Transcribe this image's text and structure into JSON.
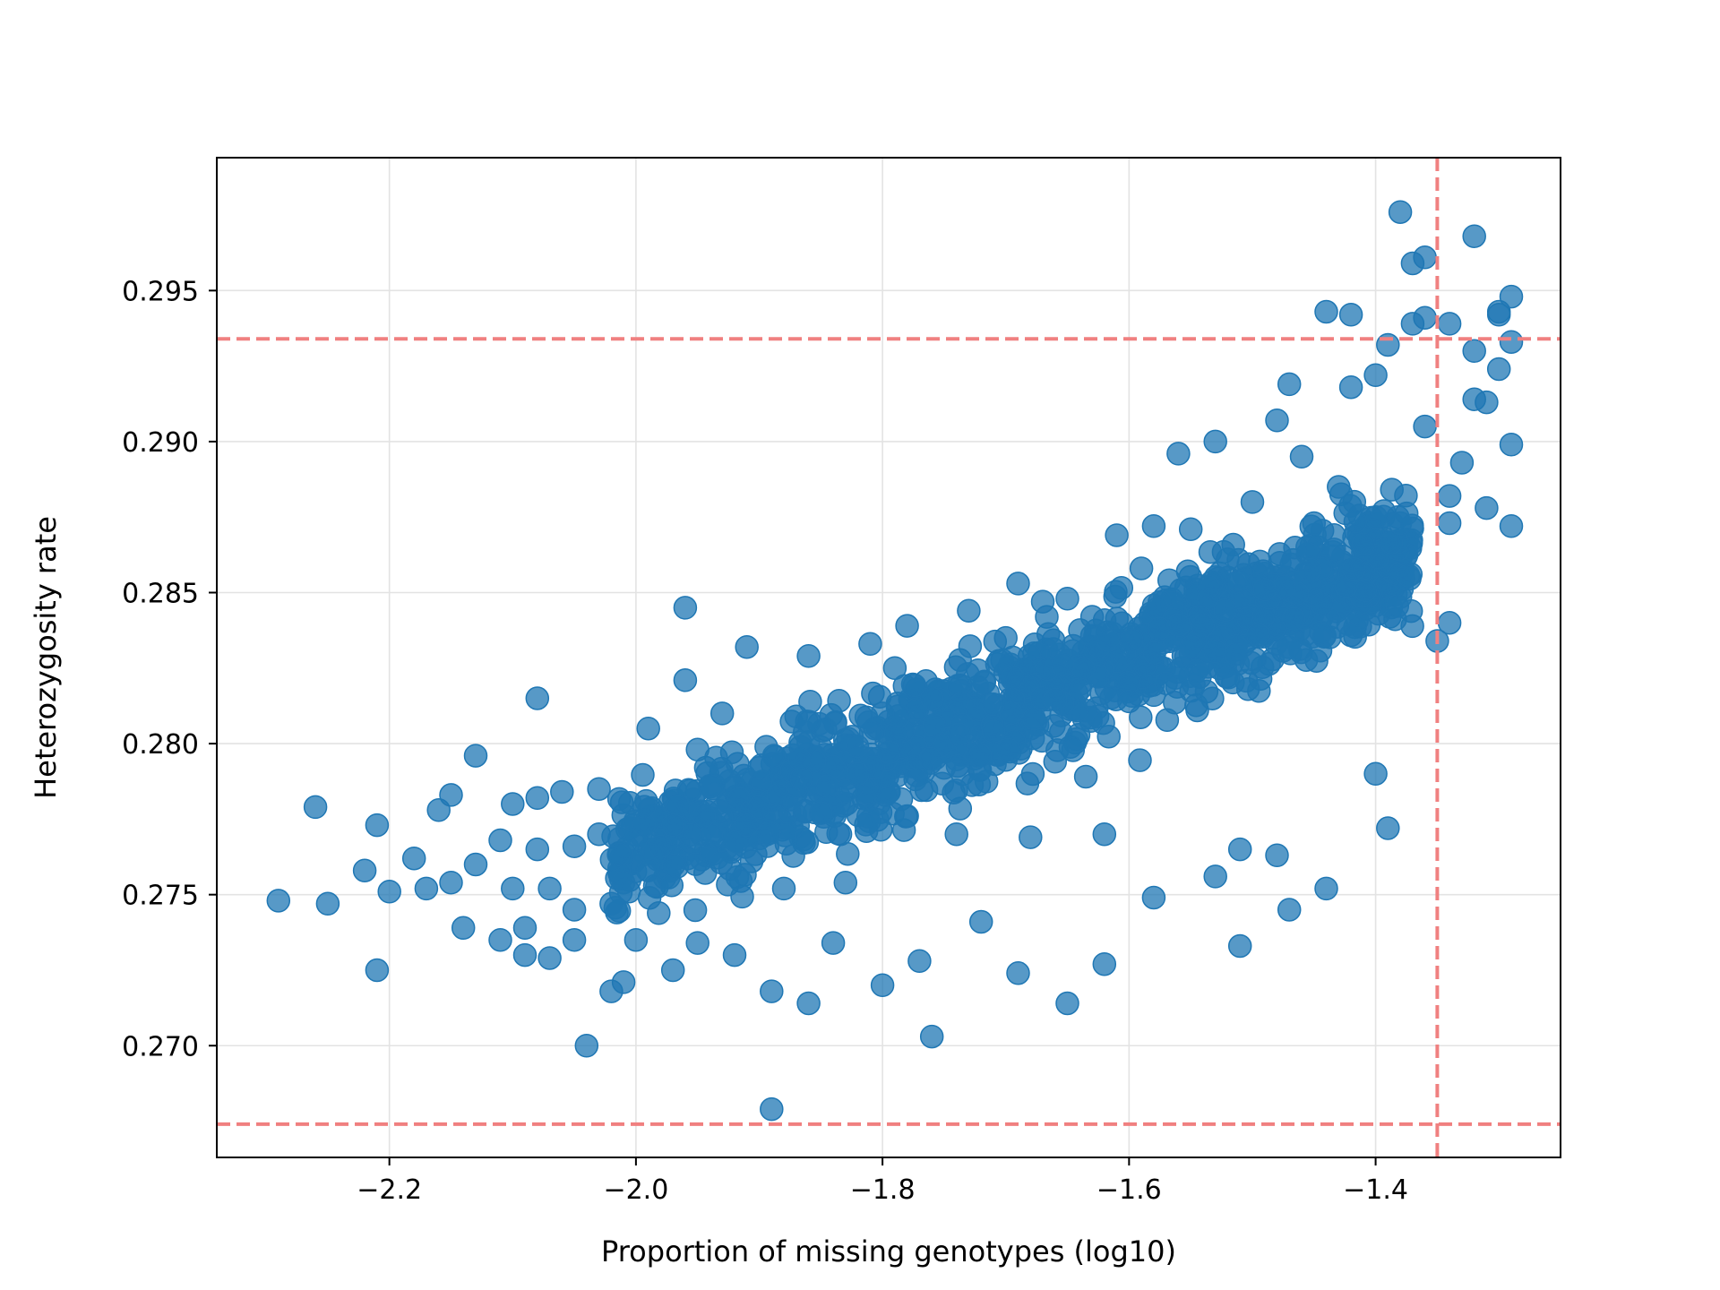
{
  "chart_data": {
    "type": "scatter",
    "title": "",
    "xlabel": "Proportion of missing genotypes (log10)",
    "ylabel": "Heterozygosity rate",
    "xlim": [
      -2.34,
      -1.25
    ],
    "ylim": [
      0.2663,
      0.2994
    ],
    "xticks": [
      -2.2,
      -2.0,
      -1.8,
      -1.6,
      -1.4
    ],
    "xtick_labels": [
      "−2.2",
      "−2.0",
      "−1.8",
      "−1.6",
      "−1.4"
    ],
    "yticks": [
      0.27,
      0.275,
      0.28,
      0.285,
      0.29,
      0.295
    ],
    "ytick_labels": [
      "0.270",
      "0.275",
      "0.280",
      "0.285",
      "0.290",
      "0.295"
    ],
    "grid": true,
    "point_color": "#1f77b4",
    "point_alpha": 0.75,
    "threshold_color": "#f08080",
    "thresholds": {
      "horizontal": [
        0.2934,
        0.2674
      ],
      "vertical": [
        -1.35
      ]
    },
    "points": [
      [
        -2.29,
        0.2748
      ],
      [
        -2.26,
        0.2779
      ],
      [
        -2.25,
        0.2747
      ],
      [
        -2.22,
        0.2758
      ],
      [
        -2.21,
        0.2773
      ],
      [
        -2.21,
        0.2725
      ],
      [
        -2.2,
        0.2751
      ],
      [
        -2.18,
        0.2762
      ],
      [
        -2.17,
        0.2752
      ],
      [
        -2.16,
        0.2778
      ],
      [
        -2.15,
        0.2783
      ],
      [
        -2.15,
        0.2754
      ],
      [
        -2.14,
        0.2739
      ],
      [
        -2.13,
        0.276
      ],
      [
        -2.13,
        0.2796
      ],
      [
        -2.11,
        0.2735
      ],
      [
        -2.11,
        0.2768
      ],
      [
        -2.1,
        0.278
      ],
      [
        -2.1,
        0.2752
      ],
      [
        -2.09,
        0.273
      ],
      [
        -2.09,
        0.2739
      ],
      [
        -2.08,
        0.2782
      ],
      [
        -2.08,
        0.2815
      ],
      [
        -2.08,
        0.2765
      ],
      [
        -2.07,
        0.2752
      ],
      [
        -2.07,
        0.2729
      ],
      [
        -2.06,
        0.2784
      ],
      [
        -2.05,
        0.2745
      ],
      [
        -2.05,
        0.2766
      ],
      [
        -2.05,
        0.2735
      ],
      [
        -2.04,
        0.27
      ],
      [
        -2.03,
        0.2785
      ],
      [
        -2.03,
        0.277
      ],
      [
        -2.02,
        0.2747
      ],
      [
        -2.02,
        0.2718
      ],
      [
        -2.01,
        0.2754
      ],
      [
        -2.01,
        0.2721
      ],
      [
        -2.0,
        0.2735
      ],
      [
        -1.99,
        0.2758
      ],
      [
        -1.99,
        0.2805
      ],
      [
        -1.98,
        0.2766
      ],
      [
        -1.97,
        0.2725
      ],
      [
        -1.97,
        0.2773
      ],
      [
        -1.96,
        0.2845
      ],
      [
        -1.96,
        0.2821
      ],
      [
        -1.95,
        0.2798
      ],
      [
        -1.95,
        0.2734
      ],
      [
        -1.94,
        0.2786
      ],
      [
        -1.93,
        0.281
      ],
      [
        -1.92,
        0.273
      ],
      [
        -1.91,
        0.2773
      ],
      [
        -1.91,
        0.2832
      ],
      [
        -1.9,
        0.2779
      ],
      [
        -1.9,
        0.2792
      ],
      [
        -1.89,
        0.2679
      ],
      [
        -1.89,
        0.2718
      ],
      [
        -1.88,
        0.2752
      ],
      [
        -1.87,
        0.2809
      ],
      [
        -1.86,
        0.2714
      ],
      [
        -1.86,
        0.2829
      ],
      [
        -1.85,
        0.2777
      ],
      [
        -1.84,
        0.2734
      ],
      [
        -1.83,
        0.2754
      ],
      [
        -1.82,
        0.279
      ],
      [
        -1.81,
        0.2833
      ],
      [
        -1.8,
        0.272
      ],
      [
        -1.8,
        0.281
      ],
      [
        -1.79,
        0.2825
      ],
      [
        -1.78,
        0.2839
      ],
      [
        -1.78,
        0.2776
      ],
      [
        -1.77,
        0.2728
      ],
      [
        -1.76,
        0.2703
      ],
      [
        -1.76,
        0.2815
      ],
      [
        -1.75,
        0.2792
      ],
      [
        -1.74,
        0.277
      ],
      [
        -1.73,
        0.2844
      ],
      [
        -1.72,
        0.2741
      ],
      [
        -1.71,
        0.2804
      ],
      [
        -1.7,
        0.2835
      ],
      [
        -1.69,
        0.2853
      ],
      [
        -1.69,
        0.2724
      ],
      [
        -1.68,
        0.2769
      ],
      [
        -1.67,
        0.2847
      ],
      [
        -1.66,
        0.2794
      ],
      [
        -1.65,
        0.2714
      ],
      [
        -1.65,
        0.2848
      ],
      [
        -1.64,
        0.2818
      ],
      [
        -1.63,
        0.2842
      ],
      [
        -1.62,
        0.277
      ],
      [
        -1.62,
        0.2727
      ],
      [
        -1.61,
        0.2869
      ],
      [
        -1.6,
        0.2814
      ],
      [
        -1.59,
        0.2858
      ],
      [
        -1.58,
        0.2749
      ],
      [
        -1.58,
        0.2872
      ],
      [
        -1.57,
        0.282
      ],
      [
        -1.56,
        0.2896
      ],
      [
        -1.55,
        0.2871
      ],
      [
        -1.54,
        0.2839
      ],
      [
        -1.53,
        0.29
      ],
      [
        -1.53,
        0.2756
      ],
      [
        -1.52,
        0.2861
      ],
      [
        -1.51,
        0.2733
      ],
      [
        -1.51,
        0.2765
      ],
      [
        -1.5,
        0.288
      ],
      [
        -1.49,
        0.2851
      ],
      [
        -1.48,
        0.2763
      ],
      [
        -1.48,
        0.2907
      ],
      [
        -1.47,
        0.2919
      ],
      [
        -1.47,
        0.2745
      ],
      [
        -1.46,
        0.2895
      ],
      [
        -1.45,
        0.2873
      ],
      [
        -1.44,
        0.2943
      ],
      [
        -1.44,
        0.2752
      ],
      [
        -1.43,
        0.2885
      ],
      [
        -1.42,
        0.2918
      ],
      [
        -1.42,
        0.2942
      ],
      [
        -1.41,
        0.2866
      ],
      [
        -1.4,
        0.2922
      ],
      [
        -1.4,
        0.279
      ],
      [
        -1.39,
        0.2772
      ],
      [
        -1.39,
        0.2932
      ],
      [
        -1.38,
        0.2976
      ],
      [
        -1.38,
        0.2873
      ],
      [
        -1.37,
        0.2939
      ],
      [
        -1.37,
        0.2959
      ],
      [
        -1.36,
        0.2961
      ],
      [
        -1.36,
        0.2941
      ],
      [
        -1.36,
        0.2905
      ],
      [
        -1.35,
        0.2834
      ],
      [
        -1.34,
        0.2882
      ],
      [
        -1.34,
        0.2873
      ],
      [
        -1.34,
        0.284
      ],
      [
        -1.34,
        0.2939
      ],
      [
        -1.33,
        0.2893
      ],
      [
        -1.32,
        0.2914
      ],
      [
        -1.32,
        0.2968
      ],
      [
        -1.32,
        0.293
      ],
      [
        -1.31,
        0.2913
      ],
      [
        -1.31,
        0.2878
      ],
      [
        -1.3,
        0.2943
      ],
      [
        -1.3,
        0.2942
      ],
      [
        -1.3,
        0.2924
      ],
      [
        -1.29,
        0.2948
      ],
      [
        -1.29,
        0.2899
      ],
      [
        -1.29,
        0.2872
      ],
      [
        -1.29,
        0.2933
      ]
    ],
    "cluster": {
      "count": 1350,
      "x_range": [
        -2.02,
        -1.37
      ],
      "trend": {
        "x0": -2.0,
        "y0": 0.2765,
        "slope": 0.01558
      },
      "spread": 0.0033
    }
  }
}
